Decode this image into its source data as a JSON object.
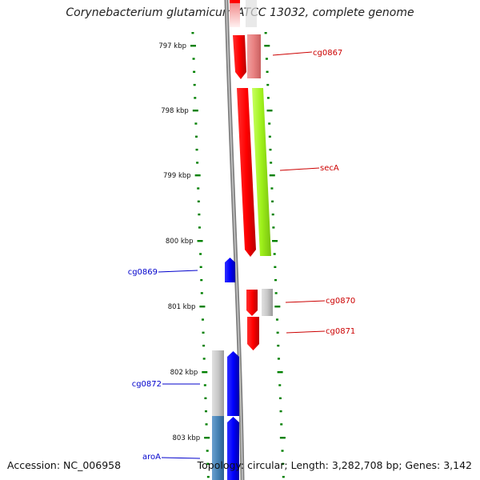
{
  "title": "Corynebacterium glutamicum ATCC 13032, complete genome",
  "footer": {
    "accession": "Accession: NC_006958",
    "summary": "Topology: circular; Length: 3,282,708 bp; Genes: 3,142"
  },
  "axis": {
    "unit": "kbp",
    "ticks": [
      "797 kbp",
      "798 kbp",
      "799 kbp",
      "800 kbp",
      "801 kbp",
      "802 kbp",
      "803 kbp"
    ]
  },
  "genes": [
    {
      "name": "cg0867",
      "color": "#e00000"
    },
    {
      "name": "secA",
      "color": "#e00000"
    },
    {
      "name": "cg0869",
      "color": "#0000cc"
    },
    {
      "name": "cg0870",
      "color": "#e00000"
    },
    {
      "name": "cg0871",
      "color": "#e00000"
    },
    {
      "name": "cg0872",
      "color": "#0000cc"
    },
    {
      "name": "aroA",
      "color": "#0000cc"
    }
  ],
  "colors": {
    "forward_strand": "#ff0000",
    "reverse_strand": "#0000ff",
    "tick_green": "#008000",
    "backbone": "#808080",
    "highlight_green": "#9ef01a",
    "pink": "#e88080",
    "gray_block": "#b8b8b8",
    "steel_blue": "#4682b4"
  }
}
